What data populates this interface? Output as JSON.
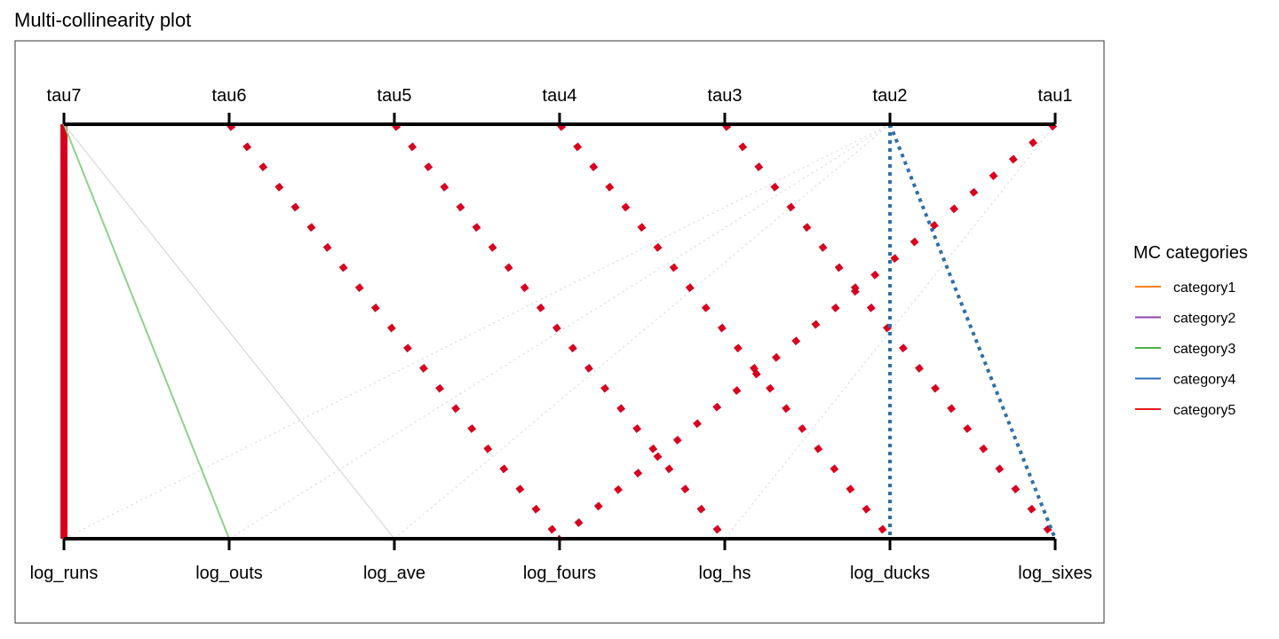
{
  "chart_data": {
    "type": "line",
    "title": "Multi-collinearity plot",
    "top_axis_labels": [
      "tau7",
      "tau6",
      "tau5",
      "tau4",
      "tau3",
      "tau2",
      "tau1"
    ],
    "bottom_axis_labels": [
      "log_runs",
      "log_outs",
      "log_ave",
      "log_fours",
      "log_hs",
      "log_ducks",
      "log_sixes"
    ],
    "legend": {
      "title": "MC categories",
      "position": "right",
      "items": [
        {
          "label": "category1",
          "color": "#ff7f0e"
        },
        {
          "label": "category2",
          "color": "#8e44ad"
        },
        {
          "label": "category3",
          "color": "#4daf4a"
        },
        {
          "label": "category4",
          "color": "#2c6fbb"
        },
        {
          "label": "category5",
          "color": "#e41a1c"
        }
      ]
    },
    "connections": [
      {
        "from": "tau7",
        "to": "log_runs",
        "category": 5,
        "style": "solid"
      },
      {
        "from": "tau7",
        "to": "log_outs",
        "category": 3,
        "style": "solid"
      },
      {
        "from": "tau7",
        "to": "log_ave",
        "category": 0,
        "style": "solid"
      },
      {
        "from": "tau6",
        "to": "log_fours",
        "category": 5,
        "style": "dotted"
      },
      {
        "from": "tau5",
        "to": "log_hs",
        "category": 5,
        "style": "dotted"
      },
      {
        "from": "tau4",
        "to": "log_ducks",
        "category": 5,
        "style": "dotted"
      },
      {
        "from": "tau3",
        "to": "log_sixes",
        "category": 5,
        "style": "dotted"
      },
      {
        "from": "tau1",
        "to": "log_fours",
        "category": 5,
        "style": "dotted"
      },
      {
        "from": "tau2",
        "to": "log_ducks",
        "category": 4,
        "style": "dotted"
      },
      {
        "from": "tau2",
        "to": "log_sixes",
        "category": 4,
        "style": "dotted"
      },
      {
        "from": "tau2",
        "to": "log_runs",
        "category": 0,
        "style": "faint-dotted"
      },
      {
        "from": "tau2",
        "to": "log_outs",
        "category": 0,
        "style": "faint-dotted"
      },
      {
        "from": "tau2",
        "to": "log_ave",
        "category": 0,
        "style": "faint-dotted"
      },
      {
        "from": "tau1",
        "to": "log_hs",
        "category": 0,
        "style": "faint-dotted"
      }
    ],
    "category_styles": {
      "0": {
        "color": "#d0d0d0"
      },
      "3": {
        "color": "#8fd18a"
      },
      "4": {
        "color": "#2f6fa8"
      },
      "5": {
        "color": "#d7001f"
      }
    }
  }
}
